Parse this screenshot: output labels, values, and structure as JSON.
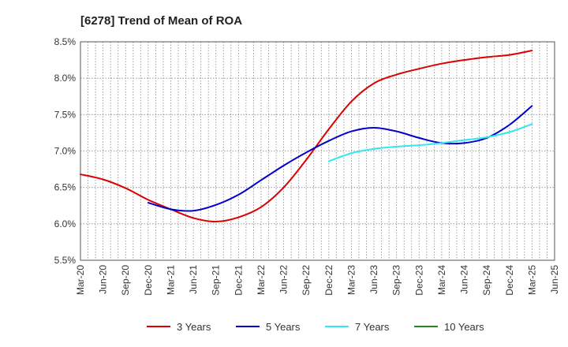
{
  "chart_data": {
    "type": "line",
    "title": "[6278]  Trend of Mean of ROA",
    "xlabel": "",
    "ylabel": "",
    "ylim": [
      5.5,
      8.5
    ],
    "yticks": [
      5.5,
      6.0,
      6.5,
      7.0,
      7.5,
      8.0,
      8.5
    ],
    "ytick_labels": [
      "5.5%",
      "6.0%",
      "6.5%",
      "7.0%",
      "7.5%",
      "8.0%",
      "8.5%"
    ],
    "grid": true,
    "legend_position": "bottom",
    "x_tick_labels": [
      "Mar-20",
      "Jun-20",
      "Sep-20",
      "Dec-20",
      "Mar-21",
      "Jun-21",
      "Sep-21",
      "Dec-21",
      "Mar-22",
      "Jun-22",
      "Sep-22",
      "Dec-22",
      "Mar-23",
      "Jun-23",
      "Sep-23",
      "Dec-23",
      "Mar-24",
      "Jun-24",
      "Sep-24",
      "Dec-24",
      "Mar-25",
      "Jun-25"
    ],
    "x": [
      "Mar-20",
      "Jun-20",
      "Sep-20",
      "Dec-20",
      "Mar-21",
      "Jun-21",
      "Sep-21",
      "Dec-21",
      "Mar-22",
      "Jun-22",
      "Sep-22",
      "Dec-22",
      "Mar-23",
      "Jun-23",
      "Sep-23",
      "Dec-23",
      "Mar-24",
      "Jun-24",
      "Sep-24",
      "Dec-24",
      "Mar-25"
    ],
    "series": [
      {
        "name": "3 Years",
        "color": "#dd0000",
        "values": [
          6.68,
          6.61,
          6.49,
          6.33,
          6.2,
          6.08,
          6.03,
          6.09,
          6.23,
          6.5,
          6.88,
          7.3,
          7.68,
          7.93,
          8.05,
          8.13,
          8.2,
          8.25,
          8.29,
          8.32,
          8.38
        ]
      },
      {
        "name": "5 Years",
        "color": "#0000cc",
        "values": [
          null,
          null,
          null,
          6.29,
          6.2,
          6.18,
          6.26,
          6.4,
          6.6,
          6.8,
          6.98,
          7.14,
          7.27,
          7.32,
          7.27,
          7.18,
          7.11,
          7.11,
          7.18,
          7.36,
          7.62
        ]
      },
      {
        "name": "7 Years",
        "color": "#33e6f0",
        "values": [
          null,
          null,
          null,
          null,
          null,
          null,
          null,
          null,
          null,
          null,
          null,
          6.86,
          6.97,
          7.03,
          7.06,
          7.08,
          7.11,
          7.15,
          7.19,
          7.26,
          7.37
        ]
      },
      {
        "name": "10 Years",
        "color": "#228822",
        "values": [
          null,
          null,
          null,
          null,
          null,
          null,
          null,
          null,
          null,
          null,
          null,
          null,
          null,
          null,
          null,
          null,
          null,
          null,
          null,
          null,
          null
        ]
      }
    ]
  }
}
